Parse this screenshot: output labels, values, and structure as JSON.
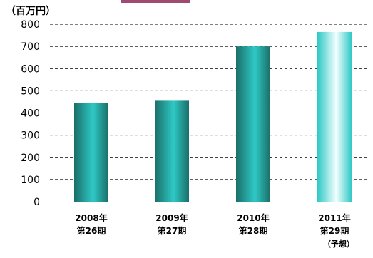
{
  "colors": {
    "accent_band": "#9e4a73",
    "bar_dark": "#1a6e68",
    "bar_light": "#2fc9c6",
    "gridline": "#000000",
    "text": "#000000"
  },
  "chart_data": {
    "type": "bar",
    "unit_label": "（百万円）",
    "categories": [
      {
        "line1": "2008年",
        "line2": "第26期",
        "line3": ""
      },
      {
        "line1": "2009年",
        "line2": "第27期",
        "line3": ""
      },
      {
        "line1": "2010年",
        "line2": "第28期",
        "line3": ""
      },
      {
        "line1": "2011年",
        "line2": "第29期",
        "line3": "（予想）"
      }
    ],
    "values": [
      445,
      455,
      700,
      765
    ],
    "forecast": [
      false,
      false,
      false,
      true
    ],
    "ylim": [
      0,
      800
    ],
    "yticks": [
      "0",
      "100",
      "200",
      "300",
      "400",
      "500",
      "600",
      "700",
      "800"
    ],
    "grid": true,
    "grid_style": "dashed",
    "legend": "none"
  }
}
